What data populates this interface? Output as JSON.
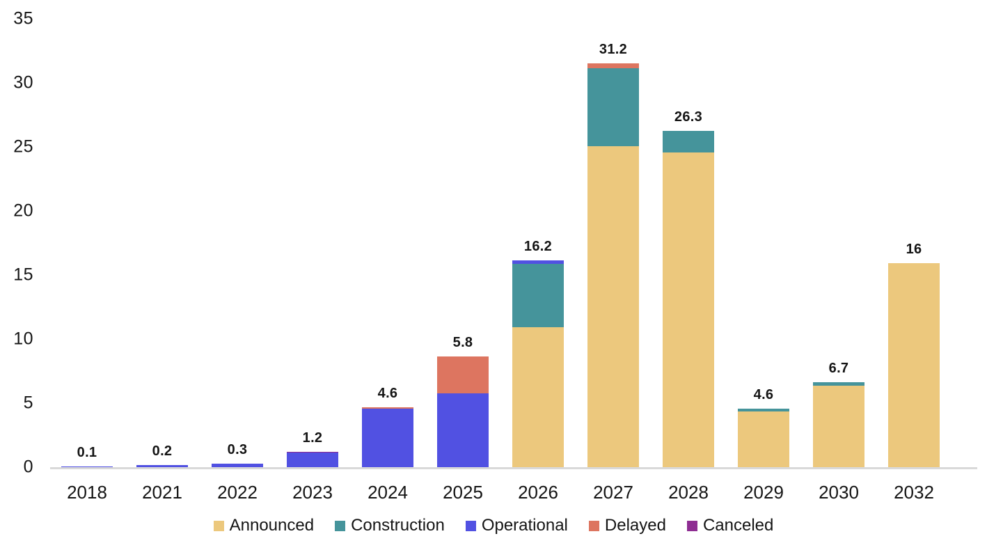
{
  "chart_data": {
    "type": "bar",
    "stacked": true,
    "title": "",
    "xlabel": "",
    "ylabel": "",
    "categories": [
      "2018",
      "2021",
      "2022",
      "2023",
      "2024",
      "2025",
      "2026",
      "2027",
      "2028",
      "2029",
      "2030",
      "2032"
    ],
    "series": [
      {
        "name": "Announced",
        "color": "#ecc87d",
        "values": [
          0,
          0,
          0,
          0,
          0,
          0,
          11.0,
          25.1,
          24.6,
          4.4,
          6.4,
          16.0
        ]
      },
      {
        "name": "Construction",
        "color": "#45949b",
        "values": [
          0,
          0,
          0,
          0,
          0,
          0,
          4.9,
          6.1,
          1.7,
          0.2,
          0.3,
          0
        ]
      },
      {
        "name": "Operational",
        "color": "#5151e2",
        "values": [
          0.1,
          0.2,
          0.3,
          1.2,
          4.6,
          5.8,
          0.3,
          0,
          0,
          0,
          0,
          0
        ]
      },
      {
        "name": "Delayed",
        "color": "#dd7560",
        "values": [
          0,
          0,
          0,
          0,
          0.15,
          2.9,
          0,
          0.35,
          0,
          0,
          0,
          0
        ]
      },
      {
        "name": "Canceled",
        "color": "#8e2d92",
        "values": [
          0,
          0,
          0,
          0.05,
          0,
          0,
          0,
          0,
          0,
          0,
          0,
          0
        ]
      }
    ],
    "bar_labels": [
      "0.1",
      "0.2",
      "0.3",
      "1.2",
      "4.6",
      "5.8",
      "16.2",
      "31.2",
      "26.3",
      "4.6",
      "6.7",
      "16"
    ],
    "yticks": [
      0,
      5,
      10,
      15,
      20,
      25,
      30,
      35
    ],
    "ylim": [
      0,
      35
    ],
    "grid": false,
    "legend": [
      "Announced",
      "Construction",
      "Operational",
      "Delayed",
      "Canceled"
    ],
    "legend_position": "bottom",
    "axis_line_color": "#d9d9d9",
    "text_color": "#141414"
  }
}
